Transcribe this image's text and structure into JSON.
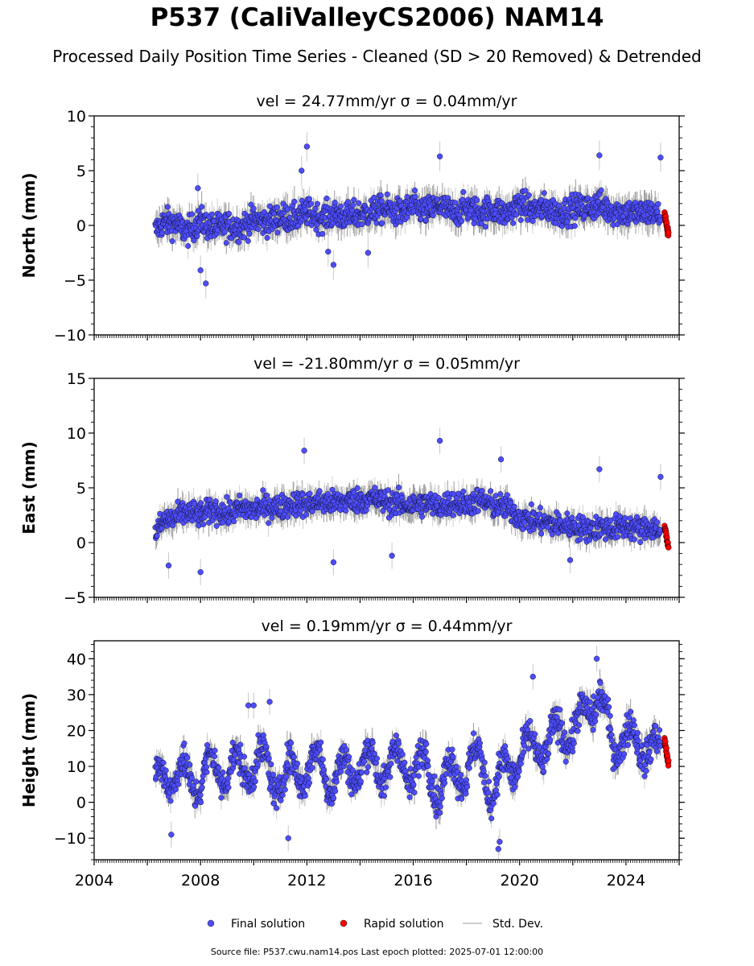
{
  "figure": {
    "title": "P537 (CaliValleyCS2006) NAM14",
    "subtitle": "Processed Daily Position Time Series - Cleaned (SD > 20 Removed) & Detrended",
    "footer": "Source file: P537.cwu.nam14.pos  Last epoch plotted: 2025-07-01 12:00:00"
  },
  "legend": {
    "items": [
      {
        "label": "Final solution",
        "color": "#4d4dff"
      },
      {
        "label": "Rapid solution",
        "color": "#ff0000"
      },
      {
        "label": "Std. Dev.",
        "color": "#cccccc"
      }
    ]
  },
  "chart_data": [
    {
      "type": "scatter",
      "title": "vel = 24.77mm/yr   σ = 0.04mm/yr",
      "ylabel": "North (mm)",
      "xlim": [
        2004.0,
        2026.0
      ],
      "ylim": [
        -10,
        10
      ],
      "yticks": [
        -10,
        -5,
        0,
        5,
        10
      ],
      "yticklabels": [
        "−10",
        "−5",
        "0",
        "5",
        "10"
      ],
      "series": [
        {
          "name": "Final solution",
          "color": "#4d4dff",
          "x": [
            2006.3,
            2006.6,
            2007.0,
            2007.5,
            2008.0,
            2008.5,
            2009.0,
            2009.5,
            2010.0,
            2010.5,
            2011.0,
            2011.5,
            2012.0,
            2012.5,
            2013.0,
            2013.5,
            2014.0,
            2014.5,
            2015.0,
            2015.5,
            2016.0,
            2016.5,
            2017.0,
            2017.5,
            2018.0,
            2018.5,
            2019.0,
            2019.5,
            2020.0,
            2020.5,
            2021.0,
            2021.5,
            2022.0,
            2022.5,
            2023.0,
            2023.5,
            2024.0,
            2024.5,
            2025.0,
            2025.3
          ],
          "y": [
            -0.5,
            0.3,
            0.2,
            -0.6,
            0.4,
            -0.3,
            0.0,
            -0.2,
            0.5,
            0.3,
            0.8,
            0.6,
            1.2,
            0.7,
            1.0,
            0.8,
            1.0,
            1.3,
            1.5,
            1.1,
            1.7,
            1.3,
            1.8,
            1.1,
            1.6,
            1.2,
            1.5,
            1.0,
            2.0,
            1.4,
            1.6,
            1.1,
            1.5,
            1.6,
            1.9,
            1.3,
            1.2,
            1.1,
            1.2,
            0.8
          ]
        },
        {
          "name": "Rapid solution",
          "color": "#ff0000",
          "x": [
            2025.45,
            2025.5,
            2025.55,
            2025.6
          ],
          "y": [
            1.2,
            0.5,
            -0.2,
            -0.8
          ]
        }
      ],
      "outliers": {
        "x": [
          2007.9,
          2008.2,
          2011.8,
          2012.0,
          2012.8,
          2013.0,
          2017.0,
          2023.0,
          2025.3,
          2008.0,
          2014.3
        ],
        "y": [
          3.4,
          -5.3,
          5.0,
          7.2,
          -2.4,
          -3.6,
          6.3,
          6.4,
          6.2,
          -4.1,
          -2.5
        ]
      }
    },
    {
      "type": "scatter",
      "title": "vel = -21.80mm/yr   σ = 0.05mm/yr",
      "ylabel": "East (mm)",
      "xlim": [
        2004.0,
        2026.0
      ],
      "ylim": [
        -5,
        15
      ],
      "yticks": [
        -5,
        0,
        5,
        10,
        15
      ],
      "yticklabels": [
        "−5",
        "0",
        "5",
        "10",
        "15"
      ],
      "series": [
        {
          "name": "Final solution",
          "color": "#4d4dff",
          "x": [
            2006.3,
            2006.6,
            2007.0,
            2007.5,
            2008.0,
            2008.5,
            2009.0,
            2009.5,
            2010.0,
            2010.5,
            2011.0,
            2011.5,
            2012.0,
            2012.5,
            2013.0,
            2013.5,
            2014.0,
            2014.5,
            2015.0,
            2015.5,
            2016.0,
            2016.5,
            2017.0,
            2017.5,
            2018.0,
            2018.5,
            2019.0,
            2019.5,
            2020.0,
            2020.5,
            2021.0,
            2021.5,
            2022.0,
            2022.5,
            2023.0,
            2023.5,
            2024.0,
            2024.5,
            2025.0,
            2025.3
          ],
          "y": [
            0.8,
            2.0,
            2.2,
            2.8,
            2.5,
            3.0,
            2.6,
            3.1,
            3.0,
            3.3,
            3.2,
            3.6,
            3.5,
            3.7,
            3.6,
            3.8,
            3.9,
            4.0,
            3.7,
            3.5,
            3.4,
            3.6,
            3.3,
            3.7,
            3.5,
            3.9,
            3.4,
            3.2,
            2.3,
            2.0,
            1.8,
            1.6,
            1.5,
            1.2,
            1.4,
            1.3,
            1.5,
            1.2,
            1.4,
            1.0
          ]
        },
        {
          "name": "Rapid solution",
          "color": "#ff0000",
          "x": [
            2025.45,
            2025.5,
            2025.55,
            2025.6
          ],
          "y": [
            1.4,
            0.8,
            0.2,
            -0.5
          ]
        }
      ],
      "outliers": {
        "x": [
          2006.8,
          2008.0,
          2011.9,
          2013.0,
          2017.0,
          2019.3,
          2023.0,
          2025.3,
          2015.2,
          2021.9
        ],
        "y": [
          -2.1,
          -2.7,
          8.4,
          -1.8,
          9.3,
          7.6,
          6.7,
          6.0,
          -1.2,
          -1.6
        ]
      }
    },
    {
      "type": "scatter",
      "title": "vel = 0.19mm/yr   σ = 0.44mm/yr",
      "ylabel": "Height (mm)",
      "xlim": [
        2004.0,
        2026.0
      ],
      "ylim": [
        -16,
        45
      ],
      "yticks": [
        -10,
        0,
        10,
        20,
        30,
        40
      ],
      "yticklabels": [
        "−10",
        "0",
        "10",
        "20",
        "30",
        "40"
      ],
      "xticks": [
        2004,
        2008,
        2012,
        2016,
        2020,
        2024
      ],
      "xticklabels": [
        "2004",
        "2008",
        "2012",
        "2016",
        "2020",
        "2024"
      ],
      "series": [
        {
          "name": "Final solution",
          "color": "#4d4dff",
          "x": [
            2006.3,
            2006.6,
            2007.0,
            2007.5,
            2008.0,
            2008.5,
            2009.0,
            2009.5,
            2010.0,
            2010.5,
            2011.0,
            2011.5,
            2012.0,
            2012.5,
            2013.0,
            2013.5,
            2014.0,
            2014.5,
            2015.0,
            2015.5,
            2016.0,
            2016.5,
            2017.0,
            2017.5,
            2018.0,
            2018.5,
            2019.0,
            2019.5,
            2020.0,
            2020.5,
            2021.0,
            2021.5,
            2022.0,
            2022.5,
            2023.0,
            2023.5,
            2024.0,
            2024.5,
            2025.0,
            2025.3
          ],
          "y": [
            5,
            12,
            4,
            10,
            3,
            13,
            6,
            12,
            8,
            13,
            2,
            12,
            6,
            14,
            3,
            12,
            7,
            14,
            6,
            15,
            5,
            14,
            0,
            12,
            6,
            15,
            0,
            12,
            10,
            18,
            13,
            22,
            18,
            26,
            30,
            15,
            20,
            14,
            18,
            12
          ]
        },
        {
          "name": "Rapid solution",
          "color": "#ff0000",
          "x": [
            2025.45,
            2025.5,
            2025.55,
            2025.6
          ],
          "y": [
            18,
            15,
            13,
            11
          ]
        }
      ],
      "outliers": {
        "x": [
          2009.8,
          2010.0,
          2010.6,
          2019.2,
          2019.25,
          2020.5,
          2022.9,
          2006.9,
          2011.3
        ],
        "y": [
          27,
          27,
          28,
          -13,
          -11,
          35,
          40,
          -9,
          -10
        ]
      }
    }
  ]
}
